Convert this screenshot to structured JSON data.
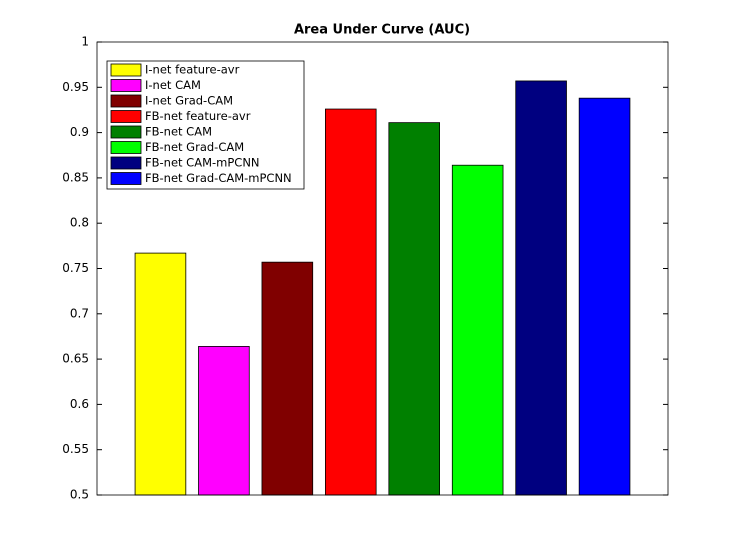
{
  "chart_data": {
    "type": "bar",
    "title": "Area Under Curve (AUC)",
    "series": [
      {
        "name": "I-net feature-avr",
        "color": "#ffff00",
        "values": [
          0.767
        ]
      },
      {
        "name": "I-net CAM",
        "color": "#ff00ff",
        "values": [
          0.664
        ]
      },
      {
        "name": "I-net Grad-CAM",
        "color": "#800000",
        "values": [
          0.757
        ]
      },
      {
        "name": "FB-net feature-avr",
        "color": "#ff0000",
        "values": [
          0.926
        ]
      },
      {
        "name": "FB-net CAM",
        "color": "#008000",
        "values": [
          0.911
        ]
      },
      {
        "name": "FB-net Grad-CAM",
        "color": "#00ff00",
        "values": [
          0.864
        ]
      },
      {
        "name": "FB-net CAM-mPCNN",
        "color": "#000080",
        "values": [
          0.957
        ]
      },
      {
        "name": "FB-net Grad-CAM-mPCNN",
        "color": "#0000ff",
        "values": [
          0.938
        ]
      }
    ],
    "ylim": [
      0.5,
      1
    ],
    "yticks": [
      0.5,
      0.55,
      0.6,
      0.65,
      0.7,
      0.75,
      0.8,
      0.85,
      0.9,
      0.95,
      1
    ],
    "legend": "upper left"
  }
}
